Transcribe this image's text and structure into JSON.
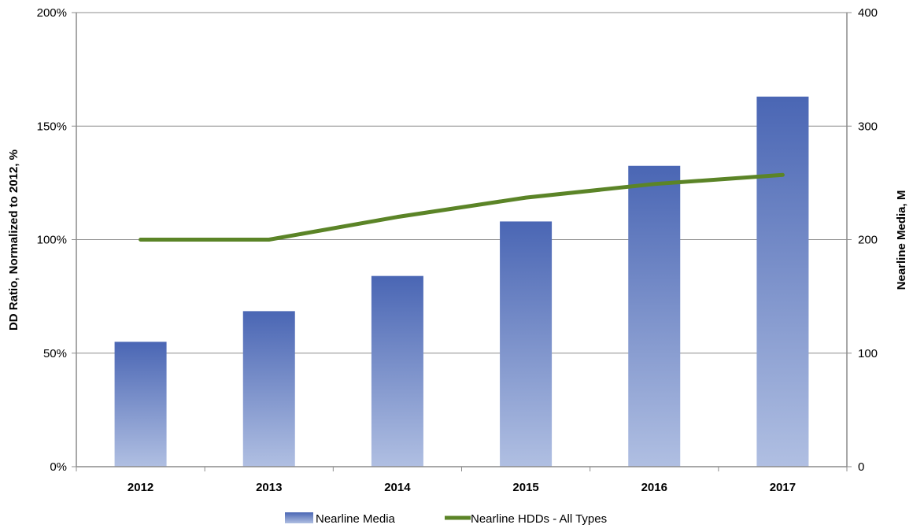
{
  "chart_data": {
    "type": "bar",
    "categories": [
      "2012",
      "2013",
      "2014",
      "2015",
      "2016",
      "2017"
    ],
    "left_axis": {
      "label": "DD Ratio, Normalized to 2012, %",
      "range": [
        0,
        200
      ],
      "ticks": [
        0,
        50,
        100,
        150,
        200
      ],
      "tick_labels": [
        "0%",
        "50%",
        "100%",
        "150%",
        "200%"
      ]
    },
    "right_axis": {
      "label": "Nearline Media, M",
      "range": [
        0,
        400
      ],
      "ticks": [
        0,
        100,
        200,
        300,
        400
      ],
      "tick_labels": [
        "0",
        "100",
        "200",
        "300",
        "400"
      ]
    },
    "series": [
      {
        "name": "Nearline Media",
        "type": "bar",
        "axis": "right",
        "values": [
          110,
          137,
          168,
          216,
          265,
          326
        ],
        "color_top": "#4a66b4",
        "color_bottom": "#b0bfe2"
      },
      {
        "name": "Nearline HDDs - All Types",
        "type": "line",
        "axis": "left",
        "values": [
          100,
          100,
          110,
          118.5,
          124.5,
          128.5
        ],
        "color": "#5b8427"
      }
    ],
    "grid": "horizontal",
    "legend_position": "bottom-center"
  }
}
